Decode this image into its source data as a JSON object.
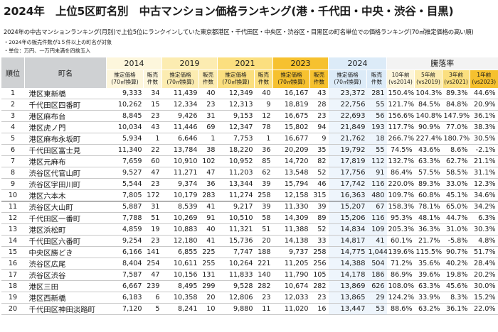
{
  "title": "2024年　上位5区町名別　中古マンション価格ランキング(港・千代田・中央・渋谷・目黒)",
  "subtitle": "2024年の中古マンションランキング(月別)で上位5位にランクインしていた東京都港区・千代田区・中央区・渋谷区・目黒区の町名単位での価格ランキング(70㎡推定価格の高い順)",
  "notes": [
    "・2024年の販売件数が1５件以上の町名が対象",
    "・単位：万円、一万円未満を四捨五入"
  ],
  "header": {
    "rank": "順位",
    "town": "町名",
    "years": [
      "2014",
      "2019",
      "2021",
      "2023",
      "2024"
    ],
    "rate": "騰落率",
    "price_label": [
      "推定価格",
      "(70㎡換算)"
    ],
    "count_label": [
      "販売",
      "件数"
    ],
    "rate_cols": [
      [
        "10年前",
        "(vs2014)"
      ],
      [
        "5年前",
        "(vs2019)"
      ],
      [
        "3年前",
        "(vs2021)"
      ],
      [
        "1年前",
        "(vs2023)"
      ]
    ]
  },
  "rows": [
    {
      "rank": "1",
      "town": "港区東新橋",
      "p2014": "9,333",
      "c2014": "34",
      "p2019": "11,439",
      "c2019": "40",
      "p2021": "12,349",
      "c2021": "40",
      "p2023": "16,167",
      "c2023": "43",
      "p2024": "23,372",
      "c2024": "281",
      "r10": "150.4%",
      "r5": "104.3%",
      "r3": "89.3%",
      "r1": "44.6%"
    },
    {
      "rank": "2",
      "town": "千代田区四番町",
      "p2014": "10,262",
      "c2014": "15",
      "p2019": "12,334",
      "c2019": "23",
      "p2021": "12,313",
      "c2021": "9",
      "p2023": "18,819",
      "c2023": "28",
      "p2024": "22,756",
      "c2024": "55",
      "r10": "121.7%",
      "r5": "84.5%",
      "r3": "84.8%",
      "r1": "20.9%"
    },
    {
      "rank": "3",
      "town": "港区麻布台",
      "p2014": "8,845",
      "c2014": "23",
      "p2019": "9,426",
      "c2019": "31",
      "p2021": "9,153",
      "c2021": "12",
      "p2023": "16,675",
      "c2023": "23",
      "p2024": "22,693",
      "c2024": "56",
      "r10": "156.6%",
      "r5": "140.8%",
      "r3": "147.9%",
      "r1": "36.1%"
    },
    {
      "rank": "4",
      "town": "港区虎ノ門",
      "p2014": "10,034",
      "c2014": "43",
      "p2019": "11,446",
      "c2019": "69",
      "p2021": "12,347",
      "c2021": "78",
      "p2023": "15,802",
      "c2023": "94",
      "p2024": "21,849",
      "c2024": "193",
      "r10": "117.7%",
      "r5": "90.9%",
      "r3": "77.0%",
      "r1": "38.3%"
    },
    {
      "rank": "5",
      "town": "港区麻布永坂町",
      "p2014": "5,934",
      "c2014": "1",
      "p2019": "6,646",
      "c2019": "1",
      "p2021": "7,753",
      "c2021": "1",
      "p2023": "16,677",
      "c2023": "9",
      "p2024": "21,762",
      "c2024": "18",
      "r10": "266.7%",
      "r5": "227.4%",
      "r3": "180.7%",
      "r1": "30.5%"
    },
    {
      "rank": "6",
      "town": "千代田区富士見",
      "p2014": "11,340",
      "c2014": "22",
      "p2019": "13,784",
      "c2019": "38",
      "p2021": "18,220",
      "c2021": "36",
      "p2023": "20,209",
      "c2023": "35",
      "p2024": "19,792",
      "c2024": "55",
      "r10": "74.5%",
      "r5": "43.6%",
      "r3": "8.6%",
      "r1": "-2.1%"
    },
    {
      "rank": "7",
      "town": "港区元麻布",
      "p2014": "7,659",
      "c2014": "60",
      "p2019": "10,910",
      "c2019": "102",
      "p2021": "10,952",
      "c2021": "85",
      "p2023": "14,720",
      "c2023": "82",
      "p2024": "17,819",
      "c2024": "112",
      "r10": "132.7%",
      "r5": "63.3%",
      "r3": "62.7%",
      "r1": "21.1%"
    },
    {
      "rank": "8",
      "town": "渋谷区代官山町",
      "p2014": "9,527",
      "c2014": "47",
      "p2019": "11,271",
      "c2019": "47",
      "p2021": "11,203",
      "c2021": "62",
      "p2023": "13,548",
      "c2023": "52",
      "p2024": "17,756",
      "c2024": "91",
      "r10": "86.4%",
      "r5": "57.5%",
      "r3": "58.5%",
      "r1": "31.1%"
    },
    {
      "rank": "9",
      "town": "渋谷区宇田川町",
      "p2014": "5,544",
      "c2014": "23",
      "p2019": "9,374",
      "c2019": "36",
      "p2021": "13,344",
      "c2021": "39",
      "p2023": "15,794",
      "c2023": "46",
      "p2024": "17,742",
      "c2024": "116",
      "r10": "220.0%",
      "r5": "89.3%",
      "r3": "33.0%",
      "r1": "12.3%"
    },
    {
      "rank": "10",
      "town": "港区六本木",
      "p2014": "7,805",
      "c2014": "172",
      "p2019": "10,179",
      "c2019": "283",
      "p2021": "11,274",
      "c2021": "258",
      "p2023": "12,158",
      "c2023": "315",
      "p2024": "16,363",
      "c2024": "480",
      "r10": "109.7%",
      "r5": "60.8%",
      "r3": "45.1%",
      "r1": "34.6%"
    },
    {
      "rank": "11",
      "town": "渋谷区大山町",
      "p2014": "5,887",
      "c2014": "31",
      "p2019": "8,539",
      "c2019": "41",
      "p2021": "9,217",
      "c2021": "39",
      "p2023": "11,330",
      "c2023": "39",
      "p2024": "15,207",
      "c2024": "67",
      "r10": "158.3%",
      "r5": "78.1%",
      "r3": "65.0%",
      "r1": "34.2%"
    },
    {
      "rank": "12",
      "town": "千代田区一番町",
      "p2014": "7,788",
      "c2014": "51",
      "p2019": "10,269",
      "c2019": "91",
      "p2021": "10,510",
      "c2021": "58",
      "p2023": "14,309",
      "c2023": "89",
      "p2024": "15,206",
      "c2024": "116",
      "r10": "95.3%",
      "r5": "48.1%",
      "r3": "44.7%",
      "r1": "6.3%"
    },
    {
      "rank": "13",
      "town": "港区浜松町",
      "p2014": "4,859",
      "c2014": "19",
      "p2019": "10,883",
      "c2019": "40",
      "p2021": "11,321",
      "c2021": "51",
      "p2023": "11,388",
      "c2023": "52",
      "p2024": "14,834",
      "c2024": "109",
      "r10": "205.3%",
      "r5": "36.3%",
      "r3": "31.0%",
      "r1": "30.3%"
    },
    {
      "rank": "14",
      "town": "千代田区六番町",
      "p2014": "9,254",
      "c2014": "23",
      "p2019": "12,180",
      "c2019": "41",
      "p2021": "15,736",
      "c2021": "20",
      "p2023": "14,138",
      "c2023": "33",
      "p2024": "14,817",
      "c2024": "41",
      "r10": "60.1%",
      "r5": "21.7%",
      "r3": "-5.8%",
      "r1": "4.8%"
    },
    {
      "rank": "15",
      "town": "中央区勝どき",
      "p2014": "6,166",
      "c2014": "141",
      "p2019": "6,855",
      "c2019": "225",
      "p2021": "7,747",
      "c2021": "188",
      "p2023": "9,737",
      "c2023": "258",
      "p2024": "14,775",
      "c2024": "1,044",
      "r10": "139.6%",
      "r5": "115.5%",
      "r3": "90.7%",
      "r1": "51.7%"
    },
    {
      "rank": "16",
      "town": "渋谷区広尾",
      "p2014": "8,404",
      "c2014": "254",
      "p2019": "10,611",
      "c2019": "255",
      "p2021": "10,264",
      "c2021": "221",
      "p2023": "11,205",
      "c2023": "256",
      "p2024": "14,388",
      "c2024": "504",
      "r10": "71.2%",
      "r5": "35.6%",
      "r3": "40.2%",
      "r1": "28.4%"
    },
    {
      "rank": "17",
      "town": "渋谷区渋谷",
      "p2014": "7,587",
      "c2014": "47",
      "p2019": "10,156",
      "c2019": "131",
      "p2021": "11,833",
      "c2021": "140",
      "p2023": "11,790",
      "c2023": "105",
      "p2024": "14,178",
      "c2024": "186",
      "r10": "86.9%",
      "r5": "39.6%",
      "r3": "19.8%",
      "r1": "20.2%"
    },
    {
      "rank": "18",
      "town": "港区三田",
      "p2014": "6,667",
      "c2014": "239",
      "p2019": "8,495",
      "c2019": "299",
      "p2021": "9,528",
      "c2021": "282",
      "p2023": "10,674",
      "c2023": "282",
      "p2024": "13,869",
      "c2024": "626",
      "r10": "108.0%",
      "r5": "63.3%",
      "r3": "45.6%",
      "r1": "30.0%"
    },
    {
      "rank": "19",
      "town": "港区西新橋",
      "p2014": "6,183",
      "c2014": "6",
      "p2019": "10,358",
      "c2019": "20",
      "p2021": "12,806",
      "c2021": "23",
      "p2023": "12,033",
      "c2023": "23",
      "p2024": "13,865",
      "c2024": "29",
      "r10": "124.2%",
      "r5": "33.9%",
      "r3": "8.3%",
      "r1": "15.2%"
    },
    {
      "rank": "20",
      "town": "千代田区神田淡路町",
      "p2014": "7,120",
      "c2014": "5",
      "p2019": "8,241",
      "c2019": "10",
      "p2021": "9,880",
      "c2021": "11",
      "p2023": "11,020",
      "c2023": "16",
      "p2024": "13,447",
      "c2024": "53",
      "r10": "88.6%",
      "r5": "63.2%",
      "r3": "36.1%",
      "r1": "22.0%"
    }
  ]
}
